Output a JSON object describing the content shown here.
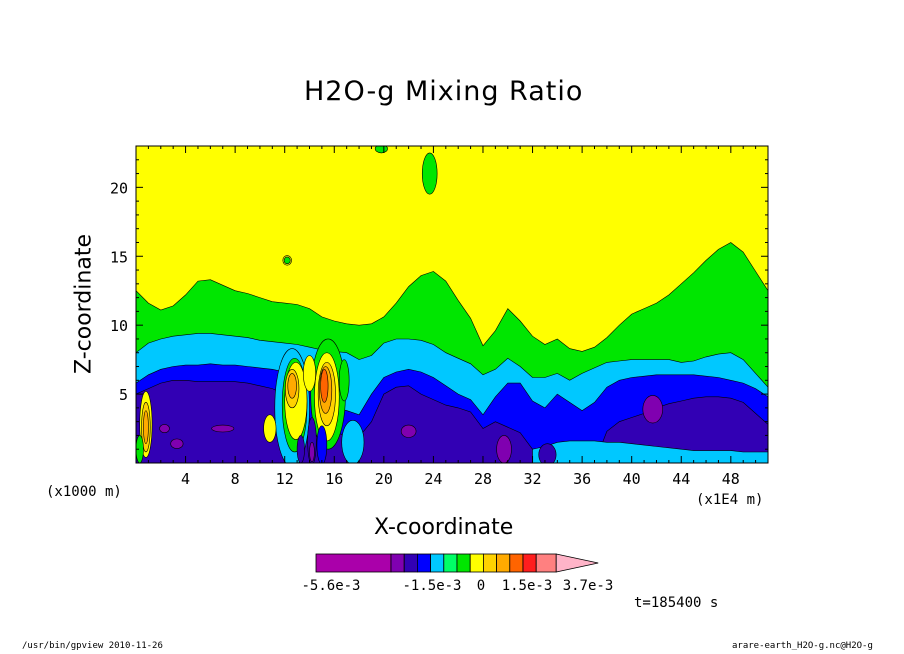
{
  "chart_data": {
    "type": "heatmap",
    "title": "H2O-g Mixing Ratio",
    "xlabel": "X-coordinate",
    "ylabel": "Z-coordinate",
    "x_unit_left": "(x1000 m)",
    "x_unit_right": "(x1E4 m)",
    "xlim": [
      0,
      51
    ],
    "ylim": [
      0,
      23
    ],
    "x_ticks": [
      "4",
      "8",
      "12",
      "16",
      "20",
      "24",
      "28",
      "32",
      "36",
      "40",
      "44",
      "48"
    ],
    "x_tick_values": [
      4,
      8,
      12,
      16,
      20,
      24,
      28,
      32,
      36,
      40,
      44,
      48
    ],
    "y_ticks": [
      "5",
      "10",
      "15",
      "20"
    ],
    "y_tick_values": [
      5,
      10,
      15,
      20
    ],
    "colorbar": {
      "colors": [
        "#aa00aa",
        "#8000b0",
        "#3200b4",
        "#0000ff",
        "#00c8ff",
        "#00ff66",
        "#00e600",
        "#ffff00",
        "#ffd200",
        "#ffaa00",
        "#ff6400",
        "#ff1e1e",
        "#ff8080",
        "#ffb4c8"
      ],
      "labels": [
        "-5.6e-3",
        "-1.5e-3",
        "0",
        "1.5e-3",
        "3.7e-3"
      ],
      "extend_right": true
    },
    "time_label": "t=185400 s",
    "smooth_layers": [
      {
        "color": "#00e600",
        "top": [
          12.5,
          11.6,
          11.1,
          11.4,
          12.2,
          13.2,
          13.3,
          12.9,
          12.5,
          12.3,
          12.0,
          11.7,
          11.6,
          11.5,
          11.2,
          10.6,
          10.3,
          10.1,
          10.0,
          10.1,
          10.6,
          11.6,
          12.8,
          13.6,
          13.9,
          13.2,
          11.8,
          10.5,
          8.5,
          9.6,
          11.2,
          10.3,
          9.2,
          8.6,
          9.0,
          8.3,
          8.1,
          8.4,
          9.1,
          10.0,
          10.8,
          11.2,
          11.6,
          12.2,
          13.0,
          13.8,
          14.7,
          15.5,
          16.0,
          15.3,
          13.9,
          12.5
        ]
      },
      {
        "color": "#00c8ff",
        "top": [
          8.0,
          8.7,
          9.0,
          9.2,
          9.3,
          9.4,
          9.4,
          9.3,
          9.2,
          9.1,
          8.9,
          8.8,
          8.7,
          8.6,
          8.4,
          8.2,
          8.1,
          8.0,
          7.5,
          7.8,
          8.7,
          9.0,
          9.0,
          8.9,
          8.6,
          8.0,
          7.6,
          7.2,
          6.4,
          6.8,
          7.6,
          7.0,
          6.2,
          6.2,
          6.5,
          6.0,
          6.5,
          6.9,
          7.3,
          7.4,
          7.5,
          7.5,
          7.5,
          7.5,
          7.3,
          7.4,
          7.7,
          7.9,
          8.0,
          7.5,
          6.5,
          5.5
        ]
      },
      {
        "color": "#0000ff",
        "top": [
          5.8,
          6.4,
          6.8,
          7.0,
          7.1,
          7.1,
          7.2,
          7.1,
          7.1,
          7.0,
          6.9,
          6.8,
          6.6,
          6.4,
          6.0,
          5.0,
          4.0,
          3.8,
          3.5,
          5.0,
          6.2,
          6.6,
          6.8,
          6.6,
          6.2,
          5.6,
          5.0,
          4.6,
          3.5,
          4.8,
          5.8,
          5.8,
          4.5,
          4.0,
          5.0,
          4.4,
          3.8,
          4.4,
          5.5,
          6.0,
          6.2,
          6.3,
          6.4,
          6.4,
          6.4,
          6.4,
          6.3,
          6.2,
          6.0,
          5.8,
          5.4,
          4.8
        ]
      },
      {
        "color": "#3200b4",
        "top": [
          5.0,
          5.4,
          5.8,
          6.0,
          6.0,
          5.9,
          5.9,
          5.9,
          5.9,
          5.8,
          5.6,
          5.4,
          5.0,
          4.2,
          3.2,
          2.6,
          2.2,
          2.0,
          1.9,
          3.0,
          5.0,
          5.5,
          5.6,
          5.0,
          4.6,
          4.2,
          4.0,
          3.7,
          2.5,
          3.0,
          2.6,
          2.2,
          1.0,
          1.0,
          0,
          0,
          0,
          0,
          2.3,
          3.0,
          3.3,
          3.6,
          4.0,
          4.3,
          4.5,
          4.7,
          4.8,
          4.8,
          4.7,
          4.4,
          3.6,
          2.8
        ]
      }
    ],
    "smooth_bottoms": [
      {
        "color": "#00c8ff",
        "points": [
          [
            32,
            1.0
          ],
          [
            33,
            1.2
          ],
          [
            34,
            1.5
          ],
          [
            35,
            1.6
          ],
          [
            36,
            1.6
          ],
          [
            37,
            1.6
          ],
          [
            38,
            1.5
          ],
          [
            39,
            1.5
          ],
          [
            40,
            1.4
          ],
          [
            41,
            1.3
          ],
          [
            42,
            1.2
          ],
          [
            43,
            1.1
          ],
          [
            44,
            1.0
          ],
          [
            45,
            0.9
          ],
          [
            46,
            0.9
          ],
          [
            47,
            0.9
          ],
          [
            48,
            0.9
          ],
          [
            49,
            0.8
          ],
          [
            50,
            0.8
          ],
          [
            51,
            0.8
          ]
        ]
      }
    ],
    "blobs": [
      {
        "color": "#8000b0",
        "cx": 41.7,
        "cy": 3.9,
        "rx": 0.8,
        "ry": 1.0
      },
      {
        "color": "#8000b0",
        "cx": 7.0,
        "cy": 2.5,
        "rx": 0.9,
        "ry": 0.25
      },
      {
        "color": "#8000b0",
        "cx": 3.3,
        "cy": 1.4,
        "rx": 0.5,
        "ry": 0.35
      },
      {
        "color": "#8000b0",
        "cx": 2.3,
        "cy": 2.5,
        "rx": 0.4,
        "ry": 0.3
      },
      {
        "color": "#8000b0",
        "cx": 22.0,
        "cy": 2.3,
        "rx": 0.6,
        "ry": 0.45
      },
      {
        "color": "#8000b0",
        "cx": 29.7,
        "cy": 1.0,
        "rx": 0.6,
        "ry": 1.0
      },
      {
        "color": "#3200b4",
        "cx": 33.2,
        "cy": 0.6,
        "rx": 0.7,
        "ry": 0.8
      },
      {
        "color": "#ffff00",
        "cx": 12.2,
        "cy": 14.7,
        "rx": 0.35,
        "ry": 0.35
      },
      {
        "color": "#00e600",
        "cx": 12.2,
        "cy": 14.7,
        "rx": 0.25,
        "ry": 0.25
      },
      {
        "color": "#00e600",
        "cx": 19.8,
        "cy": 22.8,
        "rx": 0.5,
        "ry": 0.3
      },
      {
        "color": "#00e600",
        "cx": 23.7,
        "cy": 21.0,
        "rx": 0.6,
        "ry": 1.5
      }
    ],
    "convective_patches": [
      {
        "color": "#00c8ff",
        "cx": 12.6,
        "cy": 4.0,
        "rx": 1.4,
        "ry": 4.3
      },
      {
        "color": "#00e600",
        "cx": 12.8,
        "cy": 4.2,
        "rx": 1.0,
        "ry": 3.4
      },
      {
        "color": "#ffff00",
        "cx": 12.9,
        "cy": 4.5,
        "rx": 0.9,
        "ry": 2.8
      },
      {
        "color": "#ffd200",
        "cx": 12.6,
        "cy": 5.4,
        "rx": 0.55,
        "ry": 1.4
      },
      {
        "color": "#ffaa00",
        "cx": 12.6,
        "cy": 5.6,
        "rx": 0.35,
        "ry": 0.9
      },
      {
        "color": "#00e600",
        "cx": 15.5,
        "cy": 5.0,
        "rx": 1.4,
        "ry": 4.0
      },
      {
        "color": "#ffff00",
        "cx": 15.4,
        "cy": 4.8,
        "rx": 1.0,
        "ry": 3.2
      },
      {
        "color": "#ffd200",
        "cx": 15.4,
        "cy": 5.0,
        "rx": 0.7,
        "ry": 2.3
      },
      {
        "color": "#ffaa00",
        "cx": 15.3,
        "cy": 5.3,
        "rx": 0.5,
        "ry": 1.7
      },
      {
        "color": "#ff6400",
        "cx": 15.2,
        "cy": 5.6,
        "rx": 0.3,
        "ry": 1.2
      },
      {
        "color": "#ffff00",
        "cx": 14.0,
        "cy": 6.5,
        "rx": 0.5,
        "ry": 1.3
      },
      {
        "color": "#00e600",
        "cx": 16.8,
        "cy": 6.0,
        "rx": 0.4,
        "ry": 1.5
      },
      {
        "color": "#ffff00",
        "cx": 10.8,
        "cy": 2.5,
        "rx": 0.5,
        "ry": 1.0
      },
      {
        "color": "#00c8ff",
        "cx": 17.5,
        "cy": 1.5,
        "rx": 0.9,
        "ry": 1.6
      },
      {
        "color": "#3200b4",
        "cx": 14.2,
        "cy": 1.6,
        "rx": 0.35,
        "ry": 1.7
      },
      {
        "color": "#0000ff",
        "cx": 15.0,
        "cy": 1.3,
        "rx": 0.4,
        "ry": 1.4
      },
      {
        "color": "#3200b4",
        "cx": 13.3,
        "cy": 1.0,
        "rx": 0.3,
        "ry": 1.0
      },
      {
        "color": "#8000b0",
        "cx": 14.2,
        "cy": 0.8,
        "rx": 0.2,
        "ry": 0.7
      },
      {
        "color": "#ffff00",
        "cx": 0.8,
        "cy": 2.8,
        "rx": 0.5,
        "ry": 2.4
      },
      {
        "color": "#ffd200",
        "cx": 0.8,
        "cy": 2.6,
        "rx": 0.35,
        "ry": 1.8
      },
      {
        "color": "#ffaa00",
        "cx": 0.8,
        "cy": 2.6,
        "rx": 0.2,
        "ry": 1.2
      },
      {
        "color": "#00e600",
        "cx": 0.3,
        "cy": 1.0,
        "rx": 0.3,
        "ry": 1.0
      }
    ]
  },
  "footer": {
    "left": "/usr/bin/gpview   2010-11-26",
    "right": "arare-earth_H2O-g.nc@H2O-g"
  }
}
